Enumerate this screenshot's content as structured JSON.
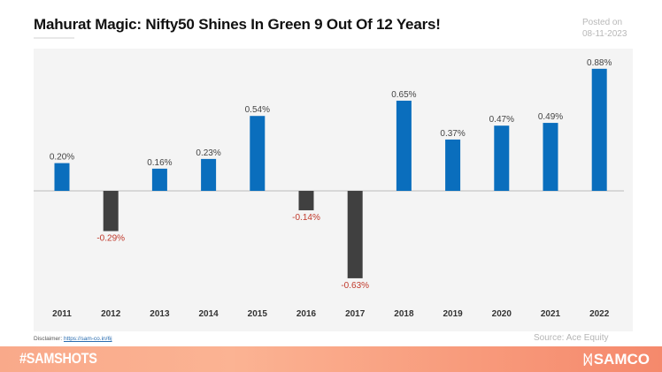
{
  "header": {
    "title": "Mahurat Magic: Nifty50 Shines In Green 9 Out Of 12 Years!",
    "posted_label": "Posted on",
    "posted_date": "08-11-2023"
  },
  "footer": {
    "disclaimer_label": "Disclaimer:",
    "disclaimer_link": "https://sam-co.in/6j",
    "source": "Source: Ace Equity",
    "hashtag": "#SAMSHOTS",
    "brand_icon": "samco-logo-icon",
    "brand_name": "SAMCO"
  },
  "colors": {
    "positive_bar": "#0a6ebd",
    "negative_bar": "#404040",
    "positive_label": "#444444",
    "negative_label": "#c0392b",
    "panel_bg": "#f4f4f4",
    "footer_start": "#f9a98a",
    "footer_end": "#f5896c"
  },
  "chart_data": {
    "type": "bar",
    "title": "Mahurat Magic: Nifty50 Shines In Green 9 Out Of 12 Years!",
    "xlabel": "",
    "ylabel": "",
    "categories": [
      "2011",
      "2012",
      "2013",
      "2014",
      "2015",
      "2016",
      "2017",
      "2018",
      "2019",
      "2020",
      "2021",
      "2022"
    ],
    "values": [
      0.2,
      -0.29,
      0.16,
      0.23,
      0.54,
      -0.14,
      -0.63,
      0.65,
      0.37,
      0.47,
      0.49,
      0.88
    ],
    "labels": [
      "0.20%",
      "-0.29%",
      "0.16%",
      "0.23%",
      "0.54%",
      "-0.14%",
      "-0.63%",
      "0.65%",
      "0.37%",
      "0.47%",
      "0.49%",
      "0.88%"
    ],
    "unit": "%",
    "ylim": [
      -0.63,
      0.88
    ],
    "grid": false,
    "legend": "none"
  }
}
